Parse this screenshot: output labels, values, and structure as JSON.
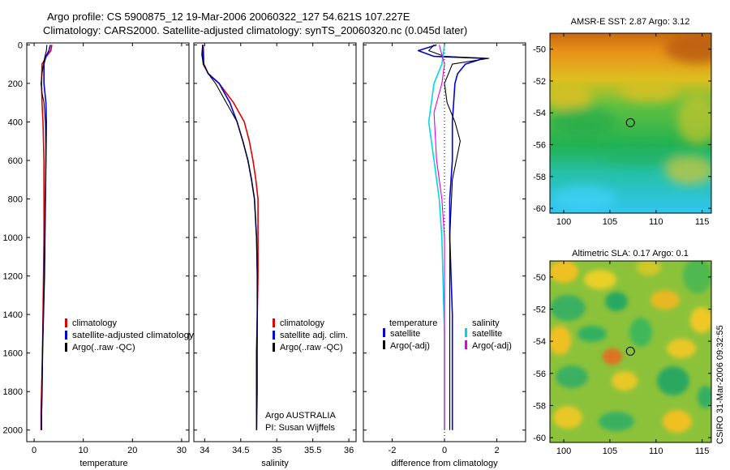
{
  "chart_data": {
    "title_line1": "Argo profile: CS 5900875_12 19-Mar-2006 20060322_127 54.621S 107.227E",
    "title_line2": "Climatology: CARS2000. Satellite-adjusted climatology: synTS_20060320.nc (0.045d later)",
    "credit": "CSIRO 31-Mar-2006 09:32:55",
    "colors": {
      "climatology": "#e00000",
      "satellite": "#0000e0",
      "argo": "#000000",
      "sat_salinity": "#00d8e8",
      "argo_adj_salinity": "#e000e0"
    },
    "panels": [
      {
        "id": "temperature",
        "type": "line",
        "xlabel": "temperature",
        "xlim": [
          -1.5,
          31.5
        ],
        "ylim": [
          2060,
          -10
        ],
        "xticks": [
          0,
          10,
          20,
          30
        ],
        "xtick_labels": [
          "0",
          "10",
          "20",
          "30"
        ],
        "yticks": [
          0,
          200,
          400,
          600,
          800,
          1000,
          1200,
          1400,
          1600,
          1800,
          2000
        ],
        "ytick_labels": [
          "0",
          "200",
          "400",
          "600",
          "800",
          "1000",
          "1200",
          "1400",
          "1600",
          "1800",
          "2000"
        ],
        "series": [
          {
            "name": "climatology",
            "color": "#e00000",
            "width": 1.6,
            "x": [
              3.6,
              3.4,
              2.5,
              1.6,
              1.5,
              1.6,
              1.8,
              2.0,
              2.0,
              2.0,
              1.9,
              1.8,
              1.7,
              1.6,
              1.5,
              1.4,
              1.4
            ],
            "y": [
              0,
              30,
              60,
              100,
              200,
              300,
              400,
              600,
              800,
              1000,
              1200,
              1400,
              1600,
              1700,
              1800,
              1900,
              2000
            ]
          },
          {
            "name": "satellite-adjusted climatology",
            "color": "#0000e0",
            "width": 1.6,
            "x": [
              3.3,
              3.0,
              2.4,
              2.0,
              2.0,
              2.4,
              2.5,
              2.4,
              2.3,
              2.2,
              2.1,
              1.9,
              1.7,
              1.6,
              1.5,
              1.5
            ],
            "y": [
              0,
              30,
              60,
              100,
              200,
              300,
              400,
              600,
              800,
              1000,
              1200,
              1400,
              1600,
              1800,
              1900,
              2000
            ]
          },
          {
            "name": "Argo(..raw -QC)",
            "color": "#000000",
            "width": 1.1,
            "x": [
              2.6,
              2.5,
              2.2,
              1.9,
              1.6,
              1.4,
              1.6,
              2.0,
              2.3,
              2.4,
              2.3,
              2.2,
              2.1,
              1.9,
              1.7,
              1.6,
              1.5
            ],
            "y": [
              0,
              30,
              60,
              100,
              150,
              200,
              250,
              300,
              400,
              600,
              800,
              1000,
              1200,
              1400,
              1600,
              1800,
              2000
            ]
          }
        ],
        "legend": {
          "items": [
            "climatology",
            "satellite-adjusted climatology",
            "Argo(..raw -QC)"
          ],
          "colors": [
            "#e00000",
            "#0000e0",
            "#000000"
          ]
        }
      },
      {
        "id": "salinity",
        "type": "line",
        "xlabel": "salinity",
        "xlim": [
          33.85,
          36.1
        ],
        "ylim": [
          2060,
          -10
        ],
        "xticks": [
          34,
          34.5,
          35,
          35.5,
          36
        ],
        "xtick_labels": [
          "34",
          "34.5",
          "35",
          "35.5",
          "36"
        ],
        "yticks": [
          0,
          200,
          400,
          600,
          800,
          1000,
          1200,
          1400,
          1600,
          1800,
          2000
        ],
        "series": [
          {
            "name": "climatology",
            "color": "#e00000",
            "width": 1.6,
            "x": [
              33.98,
              33.99,
              34.05,
              34.2,
              34.4,
              34.55,
              34.62,
              34.67,
              34.71,
              34.74,
              34.74,
              34.74,
              34.73,
              34.73,
              34.73,
              34.72
            ],
            "y": [
              0,
              100,
              150,
              200,
              300,
              400,
              500,
              600,
              700,
              800,
              1000,
              1200,
              1400,
              1600,
              1800,
              2000
            ]
          },
          {
            "name": "satellite adj. clim.",
            "color": "#0000e0",
            "width": 1.6,
            "x": [
              33.97,
              33.98,
              34.05,
              34.2,
              34.35,
              34.45,
              34.53,
              34.6,
              34.65,
              34.69,
              34.72,
              34.73,
              34.73,
              34.72,
              34.72
            ],
            "y": [
              0,
              100,
              150,
              200,
              300,
              400,
              500,
              600,
              700,
              800,
              1000,
              1200,
              1400,
              1600,
              2000
            ]
          },
          {
            "name": "Argo(..raw -QC)",
            "color": "#000000",
            "width": 1.1,
            "x": [
              33.97,
              33.96,
              33.98,
              34.05,
              34.15,
              34.3,
              34.45,
              34.53,
              34.6,
              34.65,
              34.69,
              34.72,
              34.73,
              34.73,
              34.72,
              34.72
            ],
            "y": [
              0,
              50,
              100,
              150,
              200,
              300,
              400,
              500,
              600,
              700,
              800,
              1000,
              1200,
              1400,
              1600,
              2000
            ]
          }
        ],
        "legend": {
          "items": [
            "climatology",
            "satellite adj. clim.",
            "Argo(..raw -QC)"
          ],
          "colors": [
            "#e00000",
            "#0000e0",
            "#000000"
          ]
        },
        "annotation_line1": "Argo AUSTRALIA",
        "annotation_line2": "PI: Susan Wijffels"
      },
      {
        "id": "difference",
        "type": "line",
        "xlabel": "difference from climatology",
        "xlim": [
          -3.1,
          3.1
        ],
        "ylim": [
          2060,
          -10
        ],
        "xticks": [
          -2,
          0,
          2
        ],
        "xtick_labels": [
          "-2",
          "0",
          "2"
        ],
        "yticks": [
          0,
          200,
          400,
          600,
          800,
          1000,
          1200,
          1400,
          1600,
          1800,
          2000
        ],
        "zero_line": 0,
        "series": [
          {
            "name": "temperature satellite",
            "color": "#0000e0",
            "width": 1.6,
            "x": [
              -0.3,
              -1.0,
              -0.4,
              1.5,
              0.8,
              0.5,
              0.4,
              0.3,
              0.3,
              0.2,
              0.2,
              0.3,
              0.3,
              0.3
            ],
            "y": [
              0,
              30,
              60,
              70,
              100,
              150,
              200,
              400,
              600,
              800,
              1000,
              1400,
              1800,
              2000
            ]
          },
          {
            "name": "temperature Argo(-adj)",
            "color": "#000000",
            "width": 1.1,
            "x": [
              -0.4,
              -0.6,
              0.0,
              1.7,
              0.3,
              0.0,
              0.1,
              0.4,
              0.6,
              0.3,
              0.2,
              0.2,
              0.2
            ],
            "y": [
              0,
              30,
              60,
              70,
              100,
              200,
              300,
              400,
              500,
              700,
              1000,
              1500,
              2000
            ]
          },
          {
            "name": "salinity satellite",
            "color": "#00d8e8",
            "width": 1.6,
            "x": [
              0.0,
              -0.1,
              -0.4,
              -0.6,
              -0.4,
              -0.2,
              -0.1,
              0.0,
              0.0
            ],
            "y": [
              0,
              100,
              200,
              400,
              600,
              800,
              1000,
              1500,
              2000
            ]
          },
          {
            "name": "salinity Argo(-adj)",
            "color": "#e000e0",
            "width": 1.1,
            "x": [
              -0.2,
              0.0,
              -0.1,
              -0.4,
              -0.3,
              -0.1,
              0.0,
              0.0,
              0.0
            ],
            "y": [
              0,
              100,
              200,
              350,
              600,
              800,
              1000,
              1500,
              2000
            ]
          }
        ],
        "legend_left": {
          "heading": "temperature",
          "items": [
            "satellite",
            "Argo(-adj)"
          ],
          "colors": [
            "#0000e0",
            "#000000"
          ]
        },
        "legend_right": {
          "heading": "salinity",
          "items": [
            "satellite",
            "Argo(-adj)"
          ],
          "colors": [
            "#00d8e8",
            "#e000e0"
          ]
        }
      }
    ],
    "maps": [
      {
        "id": "sst",
        "type": "heatmap",
        "title": "AMSR-E SST: 2.87 Argo: 3.12",
        "xlim": [
          98.5,
          116
        ],
        "ylim": [
          -60.3,
          -49
        ],
        "xticks": [
          100,
          105,
          110,
          115
        ],
        "xtick_labels": [
          "100",
          "105",
          "110",
          "115"
        ],
        "yticks": [
          -50,
          -52,
          -54,
          -56,
          -58,
          -60
        ],
        "ytick_labels": [
          "-50",
          "-52",
          "-54",
          "-56",
          "-58",
          "-60"
        ],
        "marker": {
          "lon": 107.227,
          "lat": -54.621
        }
      },
      {
        "id": "sla",
        "type": "heatmap",
        "title": "Altimetric SLA: 0.17 Argo: 0.1",
        "xlim": [
          98.5,
          116
        ],
        "ylim": [
          -60.3,
          -49
        ],
        "xticks": [
          100,
          105,
          110,
          115
        ],
        "xtick_labels": [
          "100",
          "105",
          "110",
          "115"
        ],
        "yticks": [
          -50,
          -52,
          -54,
          -56,
          -58,
          -60
        ],
        "ytick_labels": [
          "-50",
          "-52",
          "-54",
          "-56",
          "-58",
          "-60"
        ],
        "marker": {
          "lon": 107.227,
          "lat": -54.621
        }
      }
    ]
  }
}
